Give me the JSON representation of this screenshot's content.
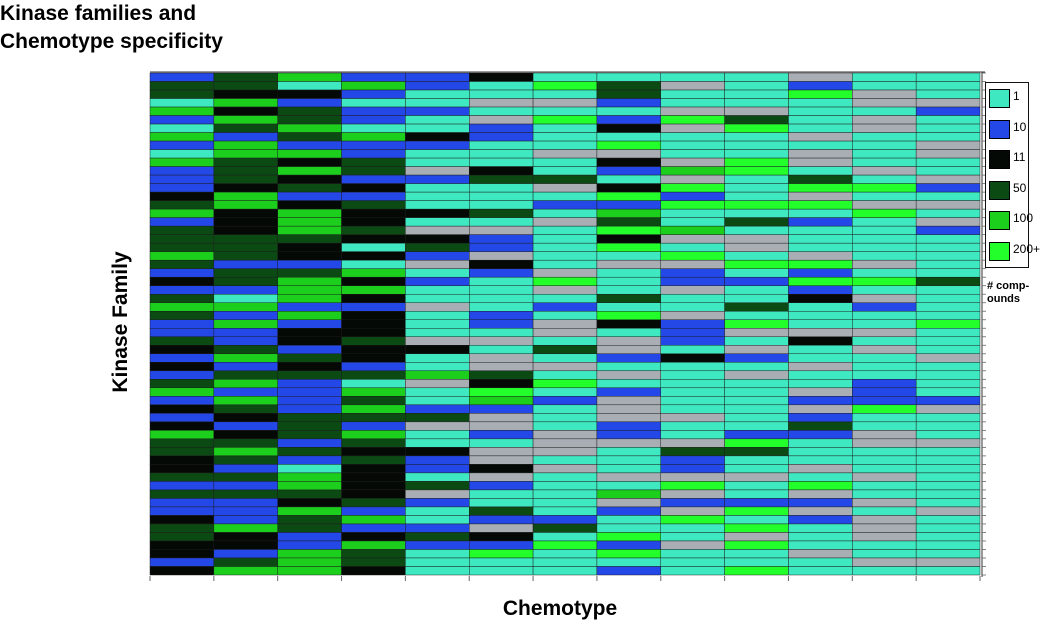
{
  "chart_data": {
    "type": "heatmap",
    "title": "Kinase families and\nChemotype specificity",
    "xlabel": "Chemotype",
    "ylabel": "Kinase Family",
    "x_columns": 13,
    "y_rows": 59,
    "legend": {
      "placement": "right",
      "caption": "# comp-\nounds",
      "entries": [
        {
          "label": "1",
          "color": "#3ee8c0"
        },
        {
          "label": "10",
          "color": "#2448e8"
        },
        {
          "label": "11",
          "color": "#050905"
        },
        {
          "label": "50",
          "color": "#0c4a14"
        },
        {
          "label": "100",
          "color": "#1ccf1c"
        },
        {
          "label": "200+",
          "color": "#22ff2a"
        }
      ],
      "extra_colors": {
        "gray": "#a9aeb4",
        "light_blue": "#3aa8ff"
      }
    },
    "values": [
      "BDDAEBAEBAEBBBCDEBDDDEDBCBDEDBBDCBCBDEBCBCEDDCCDBDBBCDDCCBC",
      "DDCECEDBEEDDDCEECCCDDDBDDBAEBEBBDEBDEBEDCBCDEDBDBDBBBECCBDE",
      "EACBDDEDBECECDBCEEEDCCBDEEEBEBCCBDCDBBBBDDDBDBAEEDCEDDBBEEE",
      "BEBABBAEBBDDBCBDCCDCACAECECBCCCDCCBDAEDEDBEDCDCCCCDBEBCEDDC",
      "BBAABAACBAAGBAAACAGCDBGABAAGAAAGCAAEGAABDGAACBBADGBAABDBAAA",
      "CAAGAGBBAAACDAAADAGBBGCBAAAABBAGAGGDCFEBGGBAGGCGBAADBGCBFAA",
      "AFAGAFAAAGAADGABAGAAAAAGFGABAGGADAGAFABAAAGGGAGAAAAABDAFAAA",
      "ADDBABCAFGCBACFBEDFCFAGAAADAFCAGGBAGABGGGBBGAAAGAEGBAAFBFAB",
      "AGAAGFGAAAGEGFBFAAEGAFGBBGAAGBBBACAAAAAAGAAGDBBGFGBGFAAGAAA",
      "AAAAGDFAAAFFAAAFADAGGAFABAADAFGAGBAGAAAAAABFDAAGAABFAFGFAAF",
      "GBFAAAAGAGGADFGFABAAAGFBFBCAAAGCAAGAAGBGBDBAAAGAFGBGBAAAGAA",
      "AAGGAGGAAAAGAFAGFAAAAAGAFAGBAAGAGAAABBBFAAGGAAAGAAGAGGGAAGA",
      "AAAGBAAAGGAAGBAGAGBAAAAADAAAAFAAAGAAAABGAAAGAAAAAAAGAAAAAGA"
    ]
  }
}
